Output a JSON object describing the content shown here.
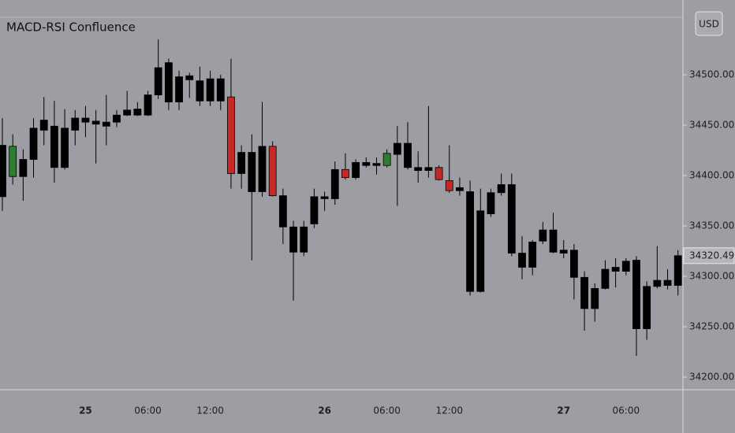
{
  "chart_data": {
    "type": "candlestick",
    "title": "MACD-RSI Confluence",
    "currency": "USD",
    "categories": [
      null,
      null,
      null,
      null,
      null,
      null,
      null,
      null,
      "25",
      null,
      null,
      null,
      null,
      null,
      "06:00",
      null,
      null,
      null,
      null,
      null,
      "12:00",
      null,
      null,
      null,
      null,
      null,
      null,
      null,
      null,
      null,
      null,
      "26",
      null,
      null,
      null,
      null,
      null,
      "06:00",
      null,
      null,
      null,
      null,
      null,
      "12:00",
      null,
      null,
      null,
      null,
      null,
      null,
      null,
      null,
      null,
      null,
      "27",
      null,
      null,
      null,
      null,
      null,
      "06:00",
      null,
      null,
      null,
      null,
      null
    ],
    "open": [
      34430,
      34399,
      34416,
      34416,
      34445,
      34449,
      34408,
      34445,
      34457,
      34454,
      34449,
      34453,
      34460,
      34460,
      34460,
      34480,
      34512,
      34473,
      34499,
      34494,
      34474,
      34496,
      34478,
      34402,
      34423,
      34384,
      34429,
      34380,
      34349,
      34324,
      34352,
      34377,
      34377,
      34406,
      34398,
      34413,
      34412,
      34410,
      34421,
      34432,
      34408,
      34405,
      34408,
      34395,
      34385,
      34384,
      34285,
      34362,
      34383,
      34391,
      34323,
      34309,
      34335,
      34346,
      34326,
      34326,
      34299,
      34268,
      34288,
      34309,
      34305,
      34316,
      34248,
      34290,
      34296,
      34291
    ],
    "high": [
      34457,
      34441,
      34426,
      34457,
      34478,
      34474,
      34466,
      34465,
      34469,
      34465,
      34480,
      34465,
      34484,
      34473,
      34484,
      34535,
      34516,
      34504,
      34502,
      34508,
      34504,
      34500,
      34516,
      34430,
      34441,
      34473,
      34434,
      34387,
      34355,
      34355,
      34387,
      34384,
      34414,
      34422,
      34416,
      34418,
      34418,
      34426,
      34449,
      34453,
      34424,
      34469,
      34410,
      34430,
      34398,
      34395,
      34387,
      34387,
      34402,
      34402,
      34340,
      34336,
      34354,
      34363,
      34336,
      34332,
      34305,
      34293,
      34316,
      34318,
      34318,
      34320,
      34295,
      34330,
      34307,
      34326
    ],
    "low": [
      34365,
      34391,
      34375,
      34398,
      34430,
      34393,
      34406,
      34430,
      34438,
      34412,
      34430,
      34448,
      34459,
      34459,
      34459,
      34476,
      34465,
      34465,
      34477,
      34469,
      34469,
      34465,
      34387,
      34387,
      34316,
      34379,
      34379,
      34332,
      34276,
      34320,
      34348,
      34365,
      34371,
      34396,
      34396,
      34408,
      34401,
      34408,
      34370,
      34406,
      34393,
      34398,
      34395,
      34383,
      34380,
      34281,
      34284,
      34359,
      34380,
      34320,
      34297,
      34301,
      34332,
      34323,
      34318,
      34277,
      34246,
      34255,
      34287,
      34289,
      34301,
      34221,
      34237,
      34288,
      34287,
      34281
    ],
    "close": [
      34379,
      34429,
      34399,
      34447,
      34455,
      34408,
      34447,
      34457,
      34453,
      34451,
      34453,
      34460,
      34465,
      34466,
      34480,
      34507,
      34473,
      34498,
      34495,
      34474,
      34496,
      34474,
      34402,
      34423,
      34384,
      34429,
      34380,
      34349,
      34324,
      34349,
      34379,
      34379,
      34406,
      34398,
      34413,
      34410,
      34410,
      34422,
      34432,
      34408,
      34405,
      34408,
      34396,
      34385,
      34388,
      34285,
      34365,
      34383,
      34391,
      34323,
      34309,
      34334,
      34346,
      34324,
      34323,
      34299,
      34268,
      34288,
      34307,
      34305,
      34315,
      34248,
      34290,
      34296,
      34291,
      34320.49
    ],
    "colors": [
      "#000000",
      "#2e7d32",
      "#000000",
      "#000000",
      "#000000",
      "#000000",
      "#000000",
      "#000000",
      "#000000",
      "#000000",
      "#000000",
      "#000000",
      "#000000",
      "#000000",
      "#000000",
      "#000000",
      "#000000",
      "#000000",
      "#000000",
      "#000000",
      "#000000",
      "#000000",
      "#c62828",
      "#000000",
      "#000000",
      "#000000",
      "#c62828",
      "#000000",
      "#000000",
      "#000000",
      "#000000",
      "#000000",
      "#000000",
      "#c62828",
      "#000000",
      "#000000",
      "#000000",
      "#2e7d32",
      "#000000",
      "#000000",
      "#000000",
      "#000000",
      "#c62828",
      "#c62828",
      "#000000",
      "#000000",
      "#000000",
      "#000000",
      "#000000",
      "#000000",
      "#000000",
      "#000000",
      "#000000",
      "#000000",
      "#000000",
      "#000000",
      "#000000",
      "#000000",
      "#000000",
      "#000000",
      "#000000",
      "#000000",
      "#000000",
      "#000000",
      "#000000",
      "#000000"
    ],
    "ylim": [
      34187.5,
      34574.2
    ],
    "yticks": [
      {
        "value": 34200,
        "label": "34200.00"
      },
      {
        "value": 34250,
        "label": "34250.00"
      },
      {
        "value": 34300,
        "label": "34300.00"
      },
      {
        "value": 34350,
        "label": "34350.00"
      },
      {
        "value": 34400,
        "label": "34400.00"
      },
      {
        "value": 34450,
        "label": "34450.00"
      },
      {
        "value": 34500,
        "label": "34500.00"
      }
    ]
  }
}
